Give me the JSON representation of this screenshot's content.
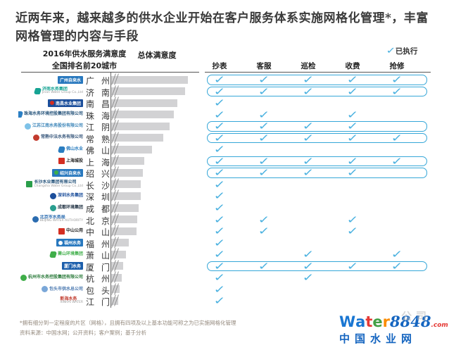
{
  "title": "近两年来，越来越多的供水企业开始在客户服务体系实施网格化管理*，丰富网格管理的内容与手段",
  "header": {
    "left_line1": "2016年供水服务满意度",
    "left_line2": "全国排名前20城市",
    "bar_header": "总体满意度",
    "legend_label": "已执行"
  },
  "chart_data": {
    "type": "bar",
    "orientation": "horizontal",
    "title": "2016年供水服务满意度 全国排名前20城市 — 总体满意度",
    "categories": [
      "广州",
      "济南",
      "南昌",
      "珠海",
      "江阴",
      "常熟",
      "佛山",
      "上海",
      "绍兴",
      "长沙",
      "深圳",
      "成都",
      "北京",
      "中山",
      "福州",
      "萧山",
      "厦门",
      "杭州",
      "包头",
      "江门"
    ],
    "values": [
      109,
      105,
      94,
      89,
      83,
      74,
      58,
      47,
      45,
      42,
      42,
      39,
      37,
      36,
      25,
      21,
      17,
      15,
      12,
      10
    ],
    "value_note": "条形为相对长度（图中无数值标注，坐标轴起点带断轴符号）",
    "grid": false,
    "matrix": {
      "columns": [
        "抄表",
        "客服",
        "巡检",
        "收费",
        "抢修"
      ],
      "legend": "已执行",
      "checks": [
        [
          1,
          1,
          1,
          1,
          1
        ],
        [
          1,
          1,
          1,
          1,
          1
        ],
        [
          1,
          0,
          0,
          0,
          0
        ],
        [
          1,
          1,
          0,
          1,
          0
        ],
        [
          1,
          1,
          1,
          1,
          0
        ],
        [
          1,
          1,
          1,
          1,
          1
        ],
        [
          1,
          0,
          0,
          0,
          0
        ],
        [
          1,
          1,
          1,
          1,
          1
        ],
        [
          1,
          1,
          1,
          1,
          0
        ],
        [
          1,
          0,
          0,
          0,
          0
        ],
        [
          1,
          0,
          0,
          0,
          0
        ],
        [
          1,
          0,
          0,
          0,
          0
        ],
        [
          1,
          1,
          0,
          1,
          0
        ],
        [
          1,
          1,
          0,
          1,
          0
        ],
        [
          1,
          0,
          0,
          0,
          0
        ],
        [
          1,
          0,
          1,
          0,
          1
        ],
        [
          1,
          1,
          1,
          1,
          1
        ],
        [
          1,
          0,
          1,
          0,
          0
        ],
        [
          1,
          0,
          0,
          0,
          0
        ],
        [
          1,
          0,
          0,
          0,
          0
        ]
      ],
      "boxed": [
        true,
        true,
        false,
        false,
        true,
        true,
        false,
        true,
        true,
        false,
        false,
        false,
        false,
        false,
        false,
        false,
        true,
        false,
        false,
        false
      ]
    }
  },
  "logos": [
    {
      "type": "box",
      "bg": "#2878be",
      "text": "广州自来水"
    },
    {
      "type": "plain",
      "icon": "swoosh",
      "icon_color": "#16a393",
      "text": "济南水务集团",
      "text_color": "#16a393",
      "sub": "Jinan Water Group Co.,Ltd"
    },
    {
      "type": "box",
      "bg": "#1b4e9b",
      "dot": "#d42e21",
      "text": "南昌水业集团"
    },
    {
      "type": "plain",
      "icon": "swoosh",
      "icon_color": "#2b7fc4",
      "text": "珠海水务环境控股集团有限公司",
      "text_color": "#25537a"
    },
    {
      "type": "plain",
      "icon": "circle",
      "icon_color": "#7ec2e8",
      "text": "江苏江南水务股份有限公司",
      "text_color": "#3a84b8"
    },
    {
      "type": "plain",
      "icon": "circle",
      "icon_color": "#c23b2e",
      "text": "常熟中法水务有限公司",
      "text_color": "#35557a"
    },
    {
      "type": "plain",
      "icon": "swoosh",
      "icon_color": "#2a7dc0",
      "text": "佛山水业",
      "text_color": "#2a7dc0"
    },
    {
      "type": "plain",
      "icon": "square",
      "icon_color": "#d42e21",
      "text": "上海城投",
      "text_color": "#222222"
    },
    {
      "type": "box",
      "bg": "#2878be",
      "dot": "#3fae49",
      "text": "绍兴自来水"
    },
    {
      "type": "plain",
      "icon": "square",
      "icon_color": "#2a9e4a",
      "text": "长沙水业集团有限公司",
      "text_color": "#25537a",
      "sub": "Changsha Water Group Co.,Ltd"
    },
    {
      "type": "plain",
      "icon": "circle",
      "icon_color": "#1b4e9b",
      "text": "深圳水务集团",
      "text_color": "#1b4e9b"
    },
    {
      "type": "plain",
      "icon": "circle",
      "icon_color": "#2a9e8f",
      "text": "成都环境集团",
      "text_color": "#223344"
    },
    {
      "type": "plain",
      "icon": "circle",
      "icon_color": "#2b6cb0",
      "text": "北京市水务局",
      "text_color": "#2b6cb0",
      "sub": "BEIJING WATER AUTHORITY"
    },
    {
      "type": "plain",
      "icon": "square",
      "icon_color": "#d42e21",
      "text": "中山公用",
      "text_color": "#222222"
    },
    {
      "type": "box",
      "bg": "#2878be",
      "dot": "#ffffff",
      "text": "福州水务"
    },
    {
      "type": "plain",
      "icon": "swoosh",
      "icon_color": "#3fae49",
      "text": "萧山环境集团",
      "text_color": "#3fae49"
    },
    {
      "type": "box",
      "bg": "#1b5eab",
      "text": "厦门水务"
    },
    {
      "type": "plain",
      "icon": "circle",
      "icon_color": "#3fae49",
      "text": "杭州市水务控股集团有限公司",
      "text_color": "#2a7a3a"
    },
    {
      "type": "plain",
      "icon": "circle",
      "icon_color": "#7aa7d8",
      "text": "包头市供水总公司",
      "text_color": "#4a78b0"
    },
    {
      "type": "plain",
      "text": "新海水务",
      "text_color": "#c0392b",
      "sub": "XINHAI WATER"
    }
  ],
  "footnote": {
    "line1": "*拥有细分到一定程度的片区（网格），且拥有四项及以上基本功能可称之为已实施网格化管理",
    "line2": "资料来源：中国水网；公开资料；客户案例；基于分析"
  },
  "watermark": {
    "ghost": "公司",
    "letters": [
      "W",
      "a",
      "t",
      "e",
      "r"
    ],
    "letter_colors": [
      "#1976d2",
      "#1976d2",
      "#e53935",
      "#43a047",
      "#fb8c00"
    ],
    "number": "8848",
    "dotcom": ".com",
    "cn": "中国水业网"
  }
}
